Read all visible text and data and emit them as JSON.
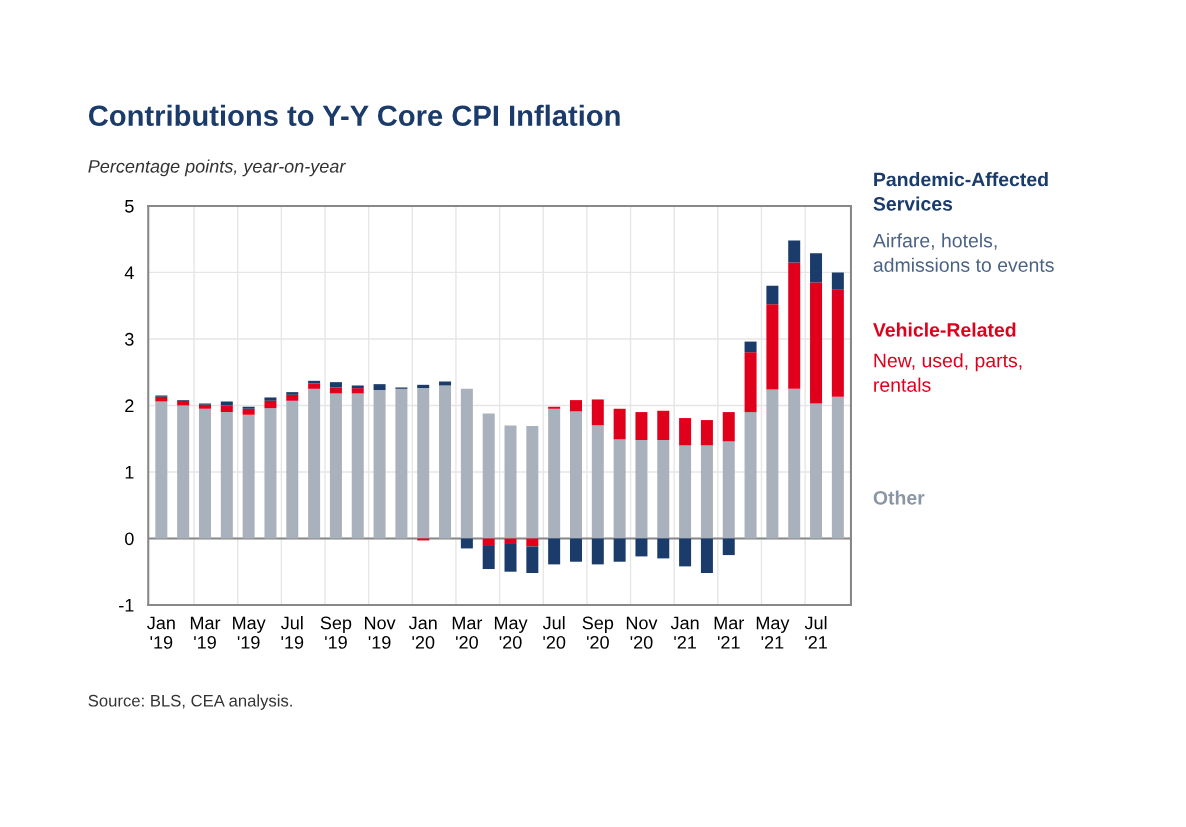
{
  "chart_data": {
    "type": "bar",
    "stacked": true,
    "title": "Contributions to Y-Y Core CPI Inflation",
    "subtitle": "Percentage points, year-on-year",
    "categories": [
      "Jan\n'19",
      null,
      "Mar\n'19",
      null,
      "May\n'19",
      null,
      "Jul\n'19",
      null,
      "Sep\n'19",
      null,
      "Nov\n'19",
      null,
      "Jan\n'20",
      null,
      "Mar\n'20",
      null,
      "May\n'20",
      null,
      "Jul\n'20",
      null,
      "Sep\n'20",
      null,
      "Nov\n'20",
      null,
      "Jan\n'21",
      null,
      "Mar\n'21",
      null,
      "May\n'21",
      null,
      "Jul\n'21",
      null
    ],
    "series": [
      {
        "name": "Other",
        "color": "#a9b1bc",
        "values": [
          2.06,
          2.0,
          1.95,
          1.9,
          1.86,
          1.96,
          2.07,
          2.25,
          2.18,
          2.18,
          2.23,
          2.25,
          2.26,
          2.3,
          2.25,
          1.88,
          1.7,
          1.69,
          1.95,
          1.91,
          1.7,
          1.49,
          1.48,
          1.48,
          1.4,
          1.4,
          1.46,
          1.9,
          2.24,
          2.25,
          2.03,
          2.13
        ]
      },
      {
        "name": "Vehicle-Related",
        "color": "#e0001b",
        "values": [
          0.07,
          0.07,
          0.06,
          0.1,
          0.09,
          0.11,
          0.09,
          0.08,
          0.09,
          0.08,
          0.0,
          0.0,
          -0.03,
          0.0,
          0.0,
          -0.1,
          -0.07,
          -0.12,
          0.03,
          0.17,
          0.39,
          0.46,
          0.42,
          0.44,
          0.41,
          0.38,
          0.44,
          0.9,
          1.28,
          1.9,
          1.82,
          1.61
        ]
      },
      {
        "name": "Pandemic-Affected\nServices",
        "color": "#1b3b6a",
        "values": [
          0.02,
          0.01,
          0.02,
          0.06,
          0.03,
          0.05,
          0.04,
          0.04,
          0.08,
          0.04,
          0.09,
          0.02,
          0.05,
          0.06,
          -0.15,
          -0.36,
          -0.43,
          -0.4,
          -0.39,
          -0.35,
          -0.39,
          -0.35,
          -0.27,
          -0.3,
          -0.42,
          -0.52,
          -0.25,
          0.16,
          0.28,
          0.33,
          0.44,
          0.26
        ]
      }
    ],
    "ylim": [
      -1,
      5
    ],
    "yticks": [
      -1,
      0,
      1,
      2,
      3,
      4,
      5
    ],
    "grid": true,
    "legend": "right",
    "annotations": [
      "Source: BLS, CEA analysis.",
      "New, used, parts,\nrentals",
      "Airfare, hotels,\nadmissions to events"
    ]
  }
}
